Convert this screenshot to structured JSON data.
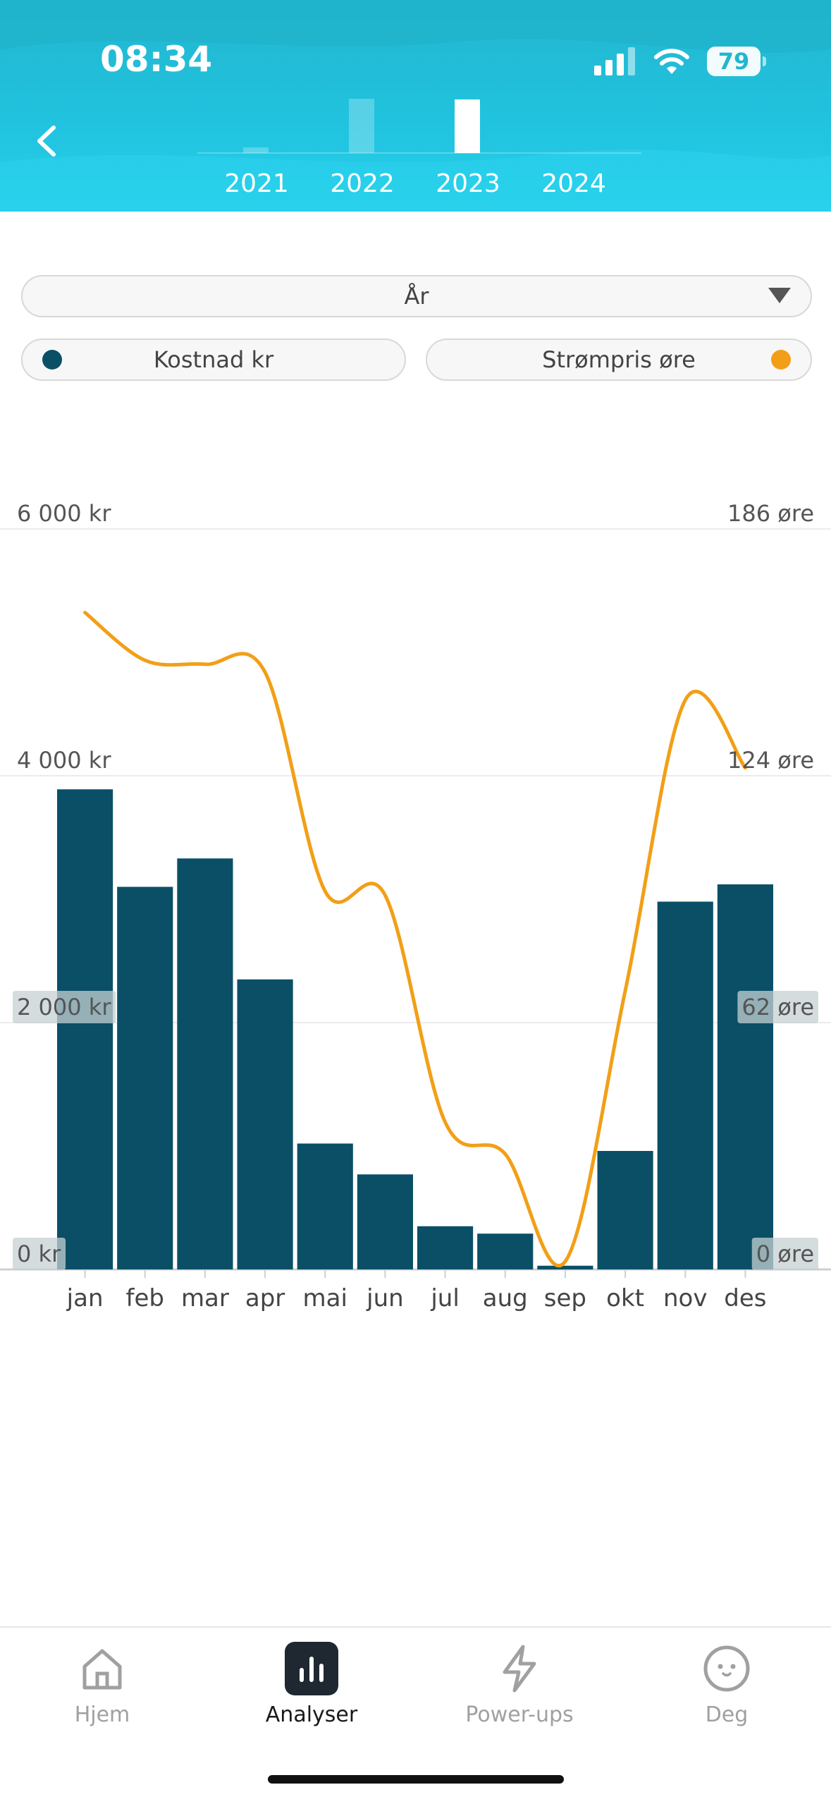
{
  "status_bar": {
    "time": "08:34",
    "battery": "79"
  },
  "header": {
    "years": [
      "2021",
      "2022",
      "2023",
      "2024"
    ],
    "selected_year": "2023"
  },
  "filters": {
    "period": "År",
    "cost_toggle": "Kostnad kr",
    "price_toggle": "Strømpris øre"
  },
  "colors": {
    "bar": "#0a4f66",
    "line": "#f29f17",
    "header": "#22b6cf"
  },
  "chart_data": {
    "type": "bar",
    "categories": [
      "jan",
      "feb",
      "mar",
      "apr",
      "mai",
      "jun",
      "jul",
      "aug",
      "sep",
      "okt",
      "nov",
      "des"
    ],
    "series": [
      {
        "name": "Kostnad kr",
        "type": "bar",
        "axis": "left",
        "values": [
          3890,
          3100,
          3330,
          2350,
          1020,
          770,
          350,
          290,
          30,
          960,
          2980,
          3120
        ]
      },
      {
        "name": "Strømpris øre",
        "type": "line",
        "axis": "right",
        "values": [
          165,
          153,
          152,
          150,
          95,
          94,
          37,
          29,
          2,
          70,
          143,
          126
        ]
      }
    ],
    "y_left": {
      "ticks": [
        "0 kr",
        "2 000 kr",
        "4 000 kr",
        "6 000 kr"
      ],
      "range": [
        0,
        6000
      ]
    },
    "y_right": {
      "ticks": [
        "0 øre",
        "62 øre",
        "124 øre",
        "186 øre"
      ],
      "range": [
        0,
        186
      ]
    },
    "grid": true
  },
  "nav": [
    {
      "label": "Hjem",
      "icon": "home-icon"
    },
    {
      "label": "Analyser",
      "icon": "chart-icon"
    },
    {
      "label": "Power-ups",
      "icon": "lightning-icon"
    },
    {
      "label": "Deg",
      "icon": "face-icon"
    }
  ]
}
